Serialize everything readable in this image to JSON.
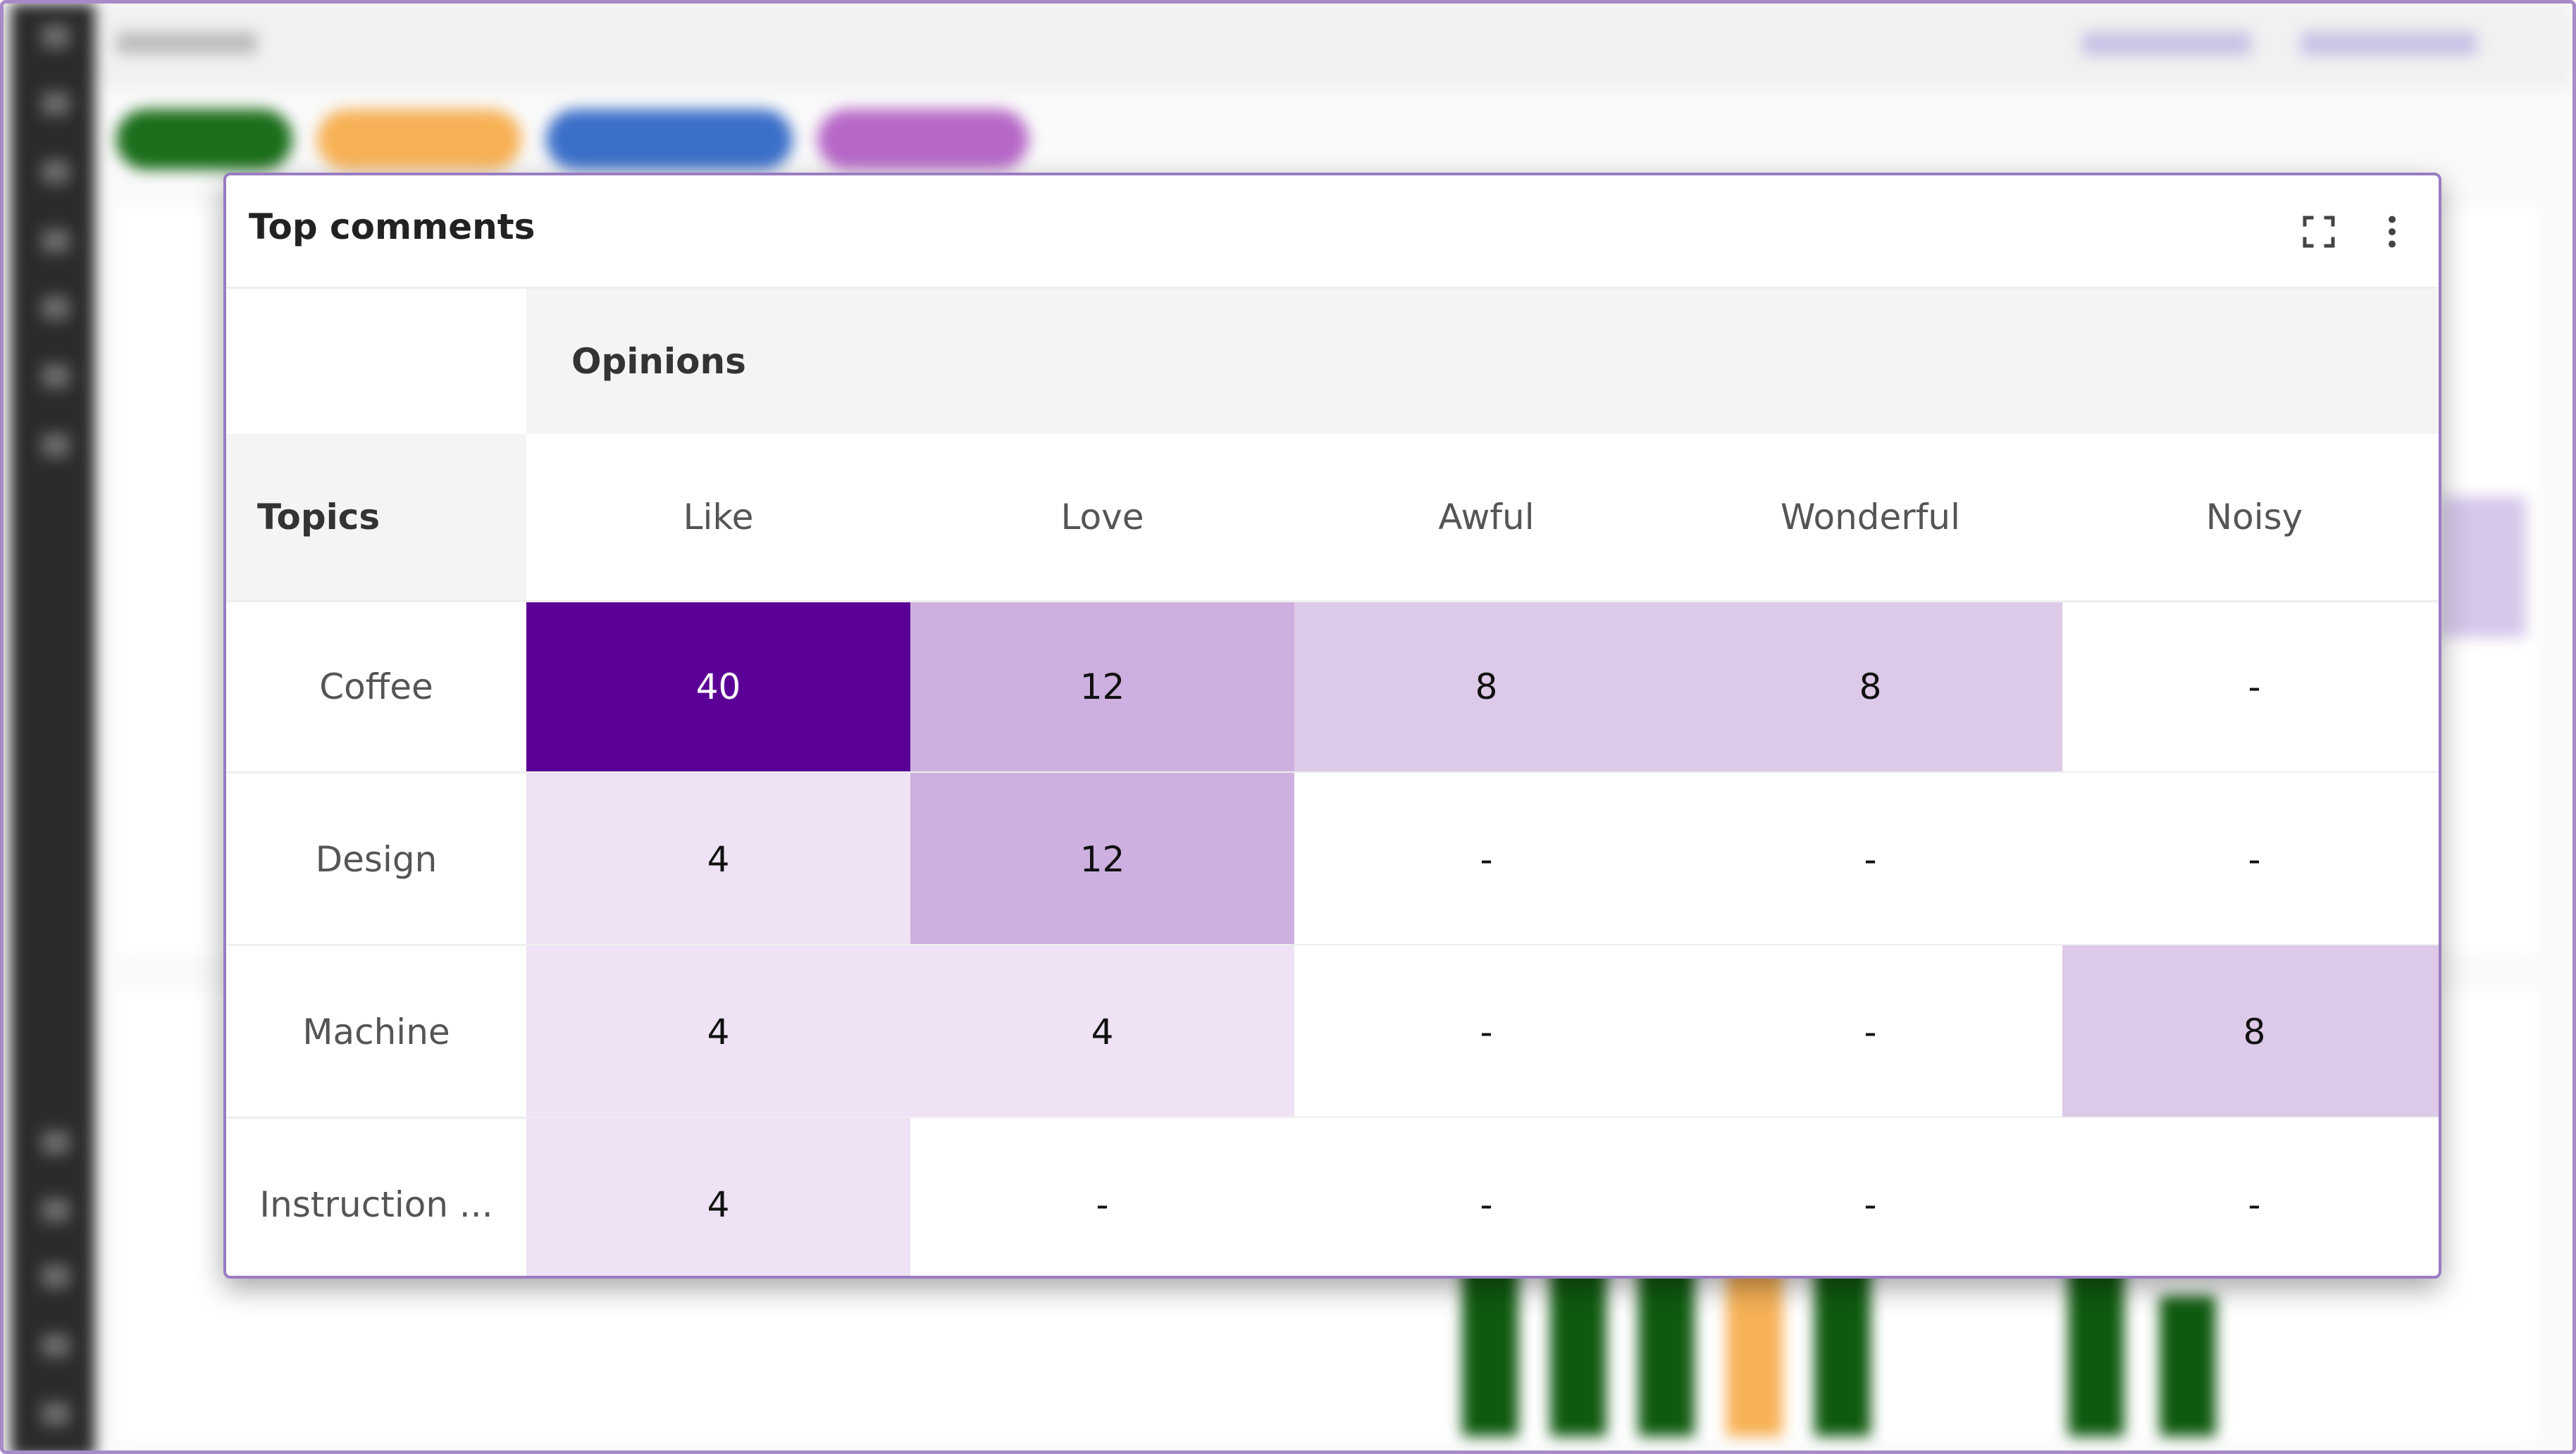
{
  "widget": {
    "title": "Top comments",
    "expand_icon": "fullscreen-icon",
    "menu_icon": "more-vertical-icon"
  },
  "table": {
    "column_group": "Opinions",
    "row_group": "Topics",
    "columns": [
      "Like",
      "Love",
      "Awful",
      "Wonderful",
      "Noisy"
    ],
    "rows": [
      {
        "label": "Coffee",
        "cells": [
          "40",
          "12",
          "8",
          "8",
          "-"
        ]
      },
      {
        "label": "Design",
        "cells": [
          "4",
          "12",
          "-",
          "-",
          "-"
        ]
      },
      {
        "label": "Machine",
        "cells": [
          "4",
          "4",
          "-",
          "-",
          "8"
        ]
      },
      {
        "label": "Instruction ...",
        "cells": [
          "4",
          "-",
          "-",
          "-",
          "-"
        ]
      }
    ],
    "heat_colors": {
      "40": "#5b0096",
      "12": "#cdb0df",
      "8": "#ddc9e8",
      "4": "#eee2f4",
      "-": "#ffffff"
    },
    "text_on_dark": "#ffffff"
  },
  "colors": {
    "accent": "#9a7cc2",
    "pill_green": "#1b6e1b",
    "pill_orange": "#f7b156",
    "pill_blue": "#3b6fc9",
    "pill_purple": "#b667c7"
  }
}
